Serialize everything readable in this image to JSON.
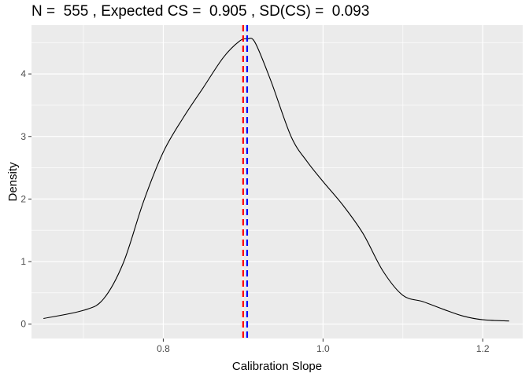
{
  "chart_data": {
    "type": "area",
    "title": "N =  555 , Expected CS =  0.905 , SD(CS) =  0.093",
    "xlabel": "Calibration Slope",
    "ylabel": "Density",
    "xlim": [
      0.635,
      1.25
    ],
    "ylim": [
      -0.23,
      4.78
    ],
    "x_ticks": [
      0.8,
      1.0,
      1.2
    ],
    "x_tick_labels": [
      "0.8",
      "1.0",
      "1.2"
    ],
    "y_ticks": [
      0,
      1,
      2,
      3,
      4
    ],
    "y_tick_labels": [
      "0",
      "1",
      "2",
      "3",
      "4"
    ],
    "grid": true,
    "legend": "none",
    "series": [
      {
        "type": "density-line",
        "color": "#000000",
        "x": [
          0.65,
          0.7,
          0.725,
          0.75,
          0.775,
          0.8,
          0.825,
          0.85,
          0.875,
          0.895,
          0.905,
          0.915,
          0.935,
          0.96,
          0.98,
          1.0,
          1.025,
          1.05,
          1.075,
          1.1,
          1.125,
          1.15,
          1.175,
          1.2,
          1.233
        ],
        "y": [
          0.09,
          0.22,
          0.4,
          0.98,
          1.95,
          2.75,
          3.3,
          3.78,
          4.26,
          4.52,
          4.56,
          4.5,
          3.88,
          3.0,
          2.6,
          2.28,
          1.9,
          1.45,
          0.85,
          0.46,
          0.36,
          0.24,
          0.13,
          0.07,
          0.05
        ]
      }
    ],
    "vlines": [
      {
        "x": 0.9,
        "color": "#ff0000",
        "style": "dashed"
      },
      {
        "x": 0.905,
        "color": "#0000ff",
        "style": "dashed"
      }
    ],
    "colors": {
      "panel_background": "#ebebeb",
      "gridline": "#ffffff",
      "line": "#000000"
    }
  }
}
